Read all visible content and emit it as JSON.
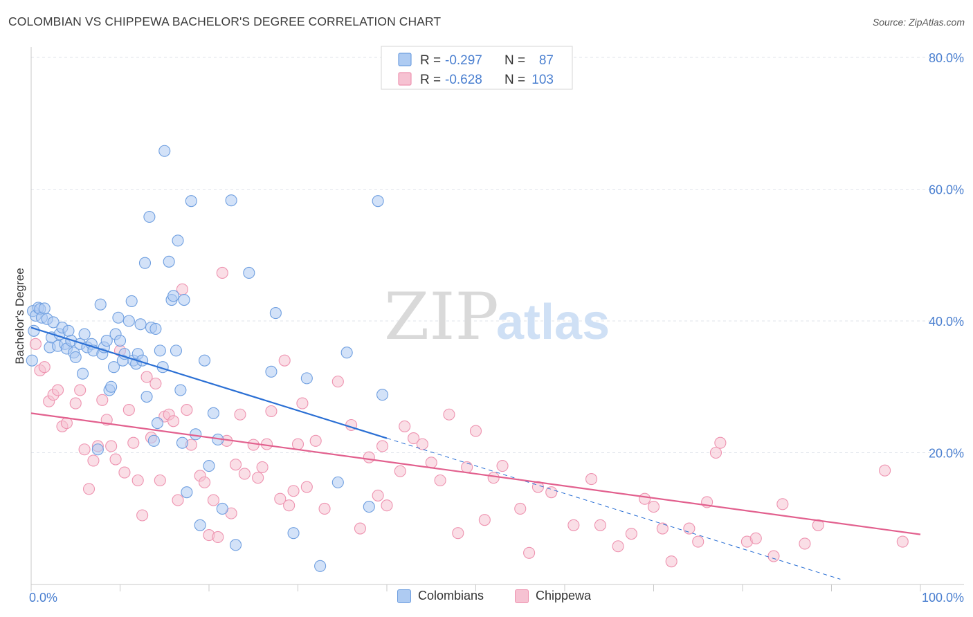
{
  "title": "COLOMBIAN VS CHIPPEWA BACHELOR'S DEGREE CORRELATION CHART",
  "source": "Source: ZipAtlas.com",
  "colors": {
    "blue_fill": "#aecbf2",
    "blue_stroke": "#6f9fe0",
    "blue_line": "#2a6fd4",
    "pink_fill": "#f6c2d2",
    "pink_stroke": "#ee93b0",
    "pink_line": "#e2608e",
    "axis_text": "#4a7fd0",
    "grid": "#dfe3ea"
  },
  "watermark": {
    "zip": "ZIP",
    "atlas": "atlas"
  },
  "legend_stats": {
    "r_label": "R =",
    "n_label": "N =",
    "rows": [
      {
        "series": "Colombians",
        "r": "-0.297",
        "n": "87"
      },
      {
        "series": "Chippewa",
        "r": "-0.628",
        "n": "103"
      }
    ]
  },
  "chart_data": {
    "type": "scatter",
    "title": "COLOMBIAN VS CHIPPEWA BACHELOR'S DEGREE CORRELATION CHART",
    "xlabel": "",
    "ylabel": "Bachelor's Degree",
    "xlim": [
      0,
      100
    ],
    "ylim": [
      0,
      80
    ],
    "x_tick_labels": [
      "0.0%",
      "100.0%"
    ],
    "y_tick_labels": [
      "20.0%",
      "40.0%",
      "60.0%",
      "80.0%"
    ],
    "y_ticks": [
      20,
      40,
      60,
      80
    ],
    "grid": true,
    "legend": [
      "Colombians",
      "Chippewa"
    ],
    "series": [
      {
        "name": "Colombians",
        "trend": {
          "x": [
            0,
            40
          ],
          "y": [
            39.0,
            22.2
          ]
        },
        "trend_dashed": {
          "x": [
            40,
            91
          ],
          "y": [
            22.2,
            0.8
          ]
        },
        "points": [
          [
            0.2,
            41.5
          ],
          [
            0.5,
            40.8
          ],
          [
            0.8,
            42.0
          ],
          [
            1.0,
            41.8
          ],
          [
            1.2,
            40.5
          ],
          [
            1.5,
            41.9
          ],
          [
            1.8,
            40.3
          ],
          [
            2.1,
            36.0
          ],
          [
            2.3,
            37.5
          ],
          [
            2.5,
            39.8
          ],
          [
            3.0,
            36.2
          ],
          [
            3.2,
            38.0
          ],
          [
            3.5,
            39.0
          ],
          [
            3.8,
            36.5
          ],
          [
            4.0,
            35.8
          ],
          [
            4.2,
            38.5
          ],
          [
            4.5,
            37.0
          ],
          [
            4.8,
            35.2
          ],
          [
            5.0,
            34.5
          ],
          [
            5.5,
            36.5
          ],
          [
            5.8,
            32.0
          ],
          [
            6.0,
            38.0
          ],
          [
            6.3,
            36.0
          ],
          [
            6.8,
            36.5
          ],
          [
            7.0,
            35.5
          ],
          [
            7.5,
            20.5
          ],
          [
            7.8,
            42.5
          ],
          [
            8.0,
            35.0
          ],
          [
            8.2,
            36.0
          ],
          [
            8.5,
            37.0
          ],
          [
            8.8,
            29.5
          ],
          [
            9.0,
            30.0
          ],
          [
            9.3,
            33.0
          ],
          [
            9.5,
            38.0
          ],
          [
            9.8,
            40.5
          ],
          [
            10.0,
            37.0
          ],
          [
            10.3,
            34.0
          ],
          [
            10.5,
            35.0
          ],
          [
            11.0,
            40.0
          ],
          [
            11.3,
            43.0
          ],
          [
            11.5,
            34.0
          ],
          [
            11.8,
            33.5
          ],
          [
            12.0,
            35.0
          ],
          [
            12.3,
            39.5
          ],
          [
            12.5,
            34.0
          ],
          [
            12.8,
            48.8
          ],
          [
            13.0,
            28.5
          ],
          [
            13.3,
            55.8
          ],
          [
            13.5,
            39.0
          ],
          [
            13.8,
            21.8
          ],
          [
            14.0,
            38.8
          ],
          [
            14.2,
            24.5
          ],
          [
            14.5,
            35.5
          ],
          [
            14.8,
            33.0
          ],
          [
            15.0,
            65.8
          ],
          [
            15.5,
            49.0
          ],
          [
            15.8,
            43.2
          ],
          [
            16.0,
            43.8
          ],
          [
            16.3,
            35.5
          ],
          [
            16.5,
            52.2
          ],
          [
            16.8,
            29.5
          ],
          [
            17.0,
            21.5
          ],
          [
            17.2,
            43.2
          ],
          [
            17.5,
            14.0
          ],
          [
            18.0,
            58.2
          ],
          [
            18.5,
            22.8
          ],
          [
            19.0,
            9.0
          ],
          [
            19.5,
            34.0
          ],
          [
            20.0,
            18.0
          ],
          [
            20.5,
            26.0
          ],
          [
            21.0,
            22.0
          ],
          [
            21.5,
            11.5
          ],
          [
            22.5,
            58.3
          ],
          [
            23.0,
            6.0
          ],
          [
            24.5,
            47.3
          ],
          [
            27.0,
            32.3
          ],
          [
            27.5,
            41.2
          ],
          [
            29.5,
            7.8
          ],
          [
            31.0,
            31.3
          ],
          [
            32.5,
            2.8
          ],
          [
            34.5,
            15.5
          ],
          [
            35.5,
            35.2
          ],
          [
            38.0,
            11.8
          ],
          [
            39.0,
            58.2
          ],
          [
            39.5,
            28.8
          ],
          [
            0.1,
            34.0
          ],
          [
            0.3,
            38.5
          ]
        ]
      },
      {
        "name": "Chippewa",
        "trend": {
          "x": [
            0,
            100
          ],
          "y": [
            26.0,
            7.6
          ]
        },
        "points": [
          [
            0.5,
            36.5
          ],
          [
            1.0,
            32.5
          ],
          [
            1.5,
            33.0
          ],
          [
            2.0,
            27.8
          ],
          [
            2.5,
            28.8
          ],
          [
            3.0,
            29.5
          ],
          [
            3.5,
            24.0
          ],
          [
            4.0,
            24.5
          ],
          [
            5.0,
            27.5
          ],
          [
            5.5,
            29.5
          ],
          [
            6.0,
            20.5
          ],
          [
            6.5,
            14.5
          ],
          [
            7.0,
            18.8
          ],
          [
            7.5,
            21.0
          ],
          [
            8.0,
            28.0
          ],
          [
            8.5,
            25.0
          ],
          [
            9.0,
            21.0
          ],
          [
            9.5,
            19.0
          ],
          [
            10.0,
            35.5
          ],
          [
            10.5,
            17.0
          ],
          [
            11.0,
            26.5
          ],
          [
            11.5,
            21.5
          ],
          [
            12.0,
            15.8
          ],
          [
            12.5,
            10.5
          ],
          [
            13.0,
            31.5
          ],
          [
            13.5,
            22.3
          ],
          [
            14.0,
            30.5
          ],
          [
            14.5,
            15.8
          ],
          [
            15.0,
            25.5
          ],
          [
            15.5,
            25.8
          ],
          [
            16.0,
            24.8
          ],
          [
            16.5,
            12.8
          ],
          [
            17.0,
            44.8
          ],
          [
            17.5,
            26.5
          ],
          [
            18.0,
            21.2
          ],
          [
            19.0,
            16.5
          ],
          [
            19.5,
            15.5
          ],
          [
            20.0,
            7.5
          ],
          [
            20.5,
            12.8
          ],
          [
            21.0,
            7.2
          ],
          [
            21.5,
            47.3
          ],
          [
            22.0,
            21.8
          ],
          [
            22.5,
            10.8
          ],
          [
            23.0,
            18.2
          ],
          [
            23.5,
            25.8
          ],
          [
            24.0,
            16.8
          ],
          [
            25.0,
            21.2
          ],
          [
            25.5,
            16.2
          ],
          [
            26.0,
            17.8
          ],
          [
            26.5,
            21.3
          ],
          [
            27.0,
            26.3
          ],
          [
            28.0,
            13.0
          ],
          [
            28.5,
            34.0
          ],
          [
            29.0,
            12.0
          ],
          [
            29.5,
            14.2
          ],
          [
            30.0,
            21.3
          ],
          [
            30.5,
            27.5
          ],
          [
            31.0,
            14.8
          ],
          [
            32.0,
            21.8
          ],
          [
            33.0,
            11.5
          ],
          [
            34.5,
            30.8
          ],
          [
            36.0,
            24.2
          ],
          [
            37.0,
            8.5
          ],
          [
            38.0,
            19.3
          ],
          [
            39.0,
            13.5
          ],
          [
            39.5,
            21.0
          ],
          [
            40.0,
            12.0
          ],
          [
            41.5,
            17.2
          ],
          [
            42.0,
            24.0
          ],
          [
            43.0,
            22.2
          ],
          [
            44.0,
            21.3
          ],
          [
            45.0,
            18.5
          ],
          [
            46.0,
            15.8
          ],
          [
            47.0,
            25.8
          ],
          [
            48.0,
            7.8
          ],
          [
            49.0,
            17.8
          ],
          [
            50.0,
            23.3
          ],
          [
            51.0,
            9.8
          ],
          [
            52.0,
            16.2
          ],
          [
            53.0,
            18.0
          ],
          [
            55.0,
            11.5
          ],
          [
            56.0,
            4.8
          ],
          [
            57.0,
            14.8
          ],
          [
            58.5,
            14.0
          ],
          [
            61.0,
            9.0
          ],
          [
            63.0,
            16.0
          ],
          [
            64.0,
            9.0
          ],
          [
            66.0,
            5.8
          ],
          [
            67.5,
            7.7
          ],
          [
            69.0,
            13.0
          ],
          [
            70.0,
            11.8
          ],
          [
            71.0,
            8.5
          ],
          [
            72.0,
            3.5
          ],
          [
            74.0,
            8.5
          ],
          [
            75.0,
            6.5
          ],
          [
            76.0,
            12.5
          ],
          [
            77.0,
            20.0
          ],
          [
            77.5,
            21.5
          ],
          [
            80.5,
            6.5
          ],
          [
            81.5,
            7.0
          ],
          [
            83.5,
            4.3
          ],
          [
            84.5,
            12.2
          ],
          [
            87.0,
            6.2
          ],
          [
            88.5,
            9.0
          ],
          [
            96.0,
            17.3
          ],
          [
            98.0,
            6.5
          ]
        ]
      }
    ]
  },
  "bottom_legend": [
    {
      "label": "Colombians"
    },
    {
      "label": "Chippewa"
    }
  ]
}
